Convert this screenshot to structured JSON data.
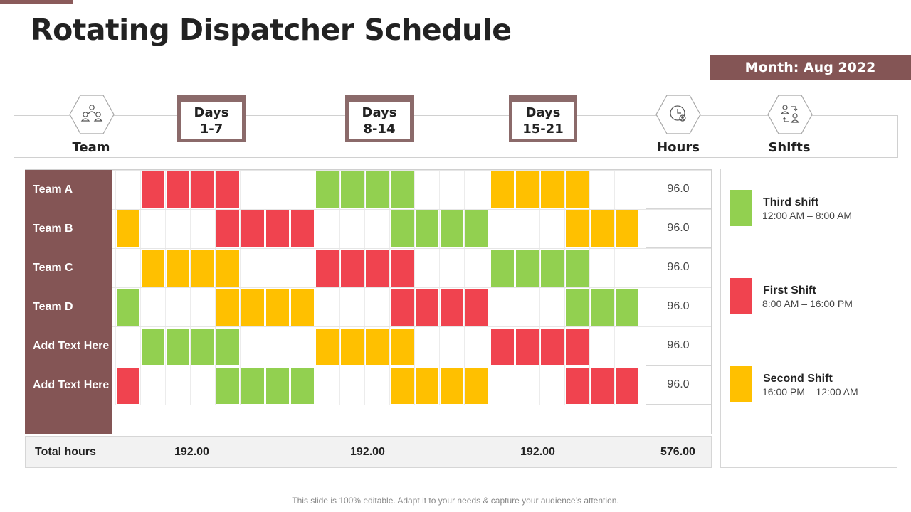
{
  "title": "Rotating Dispatcher Schedule",
  "month": "Month: Aug 2022",
  "header": {
    "team_label": "Team",
    "hours_label": "Hours",
    "shifts_label": "Shifts",
    "day_groups": [
      {
        "line1": "Days",
        "line2": "1-7"
      },
      {
        "line1": "Days",
        "line2": "8-14"
      },
      {
        "line1": "Days",
        "line2": "15-21"
      }
    ]
  },
  "colors": {
    "third": "#92d050",
    "first": "#f0434f",
    "second": "#ffc000",
    "accent": "#845555"
  },
  "schedule": [
    {
      "team": "Team A",
      "hours": "96.0",
      "shifts": [
        "",
        "F",
        "F",
        "F",
        "F",
        "",
        "",
        "",
        "T",
        "T",
        "T",
        "T",
        "",
        "",
        "",
        "S",
        "S",
        "S",
        "S",
        "",
        ""
      ]
    },
    {
      "team": "Team B",
      "hours": "96.0",
      "shifts": [
        "S",
        "",
        "",
        "",
        "F",
        "F",
        "F",
        "F",
        "",
        "",
        "",
        "T",
        "T",
        "T",
        "T",
        "",
        "",
        "",
        "S",
        "S",
        "S"
      ]
    },
    {
      "team": "Team C",
      "hours": "96.0",
      "shifts": [
        "",
        "S",
        "S",
        "S",
        "S",
        "",
        "",
        "",
        "F",
        "F",
        "F",
        "F",
        "",
        "",
        "",
        "T",
        "T",
        "T",
        "T",
        "",
        ""
      ]
    },
    {
      "team": "Team D",
      "hours": "96.0",
      "shifts": [
        "T",
        "",
        "",
        "",
        "S",
        "S",
        "S",
        "S",
        "",
        "",
        "",
        "F",
        "F",
        "F",
        "F",
        "",
        "",
        "",
        "T",
        "T",
        "T"
      ]
    },
    {
      "team": "Add Text Here",
      "hours": "96.0",
      "shifts": [
        "",
        "T",
        "T",
        "T",
        "T",
        "",
        "",
        "",
        "S",
        "S",
        "S",
        "S",
        "",
        "",
        "",
        "F",
        "F",
        "F",
        "F",
        "",
        ""
      ]
    },
    {
      "team": "Add Text Here",
      "hours": "96.0",
      "shifts": [
        "F",
        "",
        "",
        "",
        "T",
        "T",
        "T",
        "T",
        "",
        "",
        "",
        "S",
        "S",
        "S",
        "S",
        "",
        "",
        "",
        "F",
        "F",
        "F"
      ]
    }
  ],
  "totals": {
    "label": "Total hours",
    "days_1_7": "192.00",
    "days_8_14": "192.00",
    "days_15_21": "192.00",
    "grand": "576.00"
  },
  "legend": [
    {
      "key": "third",
      "title": "Third shift",
      "time": "12:00 AM – 8:00 AM"
    },
    {
      "key": "first",
      "title": "First Shift",
      "time": "8:00 AM – 16:00 PM"
    },
    {
      "key": "second",
      "title": "Second Shift",
      "time": "16:00 PM – 12:00 AM"
    }
  ],
  "footer": "This slide is 100% editable. Adapt it to your needs & capture your audience’s attention."
}
